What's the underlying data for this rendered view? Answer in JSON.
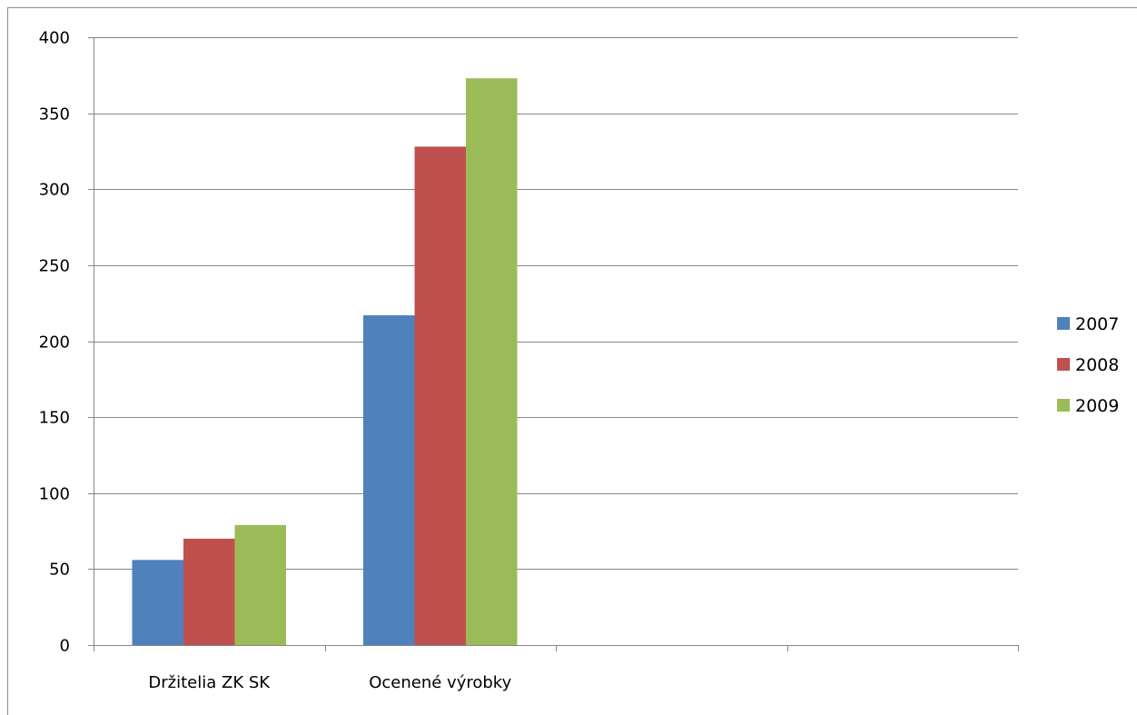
{
  "chart_data": {
    "type": "bar",
    "categories": [
      "Držitelia ZK SK",
      "Ocenené výrobky",
      "",
      ""
    ],
    "series": [
      {
        "name": "2007",
        "color": "#4f81bd",
        "values": [
          56,
          217,
          null,
          null
        ]
      },
      {
        "name": "2008",
        "color": "#c0504d",
        "values": [
          70,
          328,
          null,
          null
        ]
      },
      {
        "name": "2009",
        "color": "#9bbb59",
        "values": [
          79,
          373,
          null,
          null
        ]
      }
    ],
    "y_ticks": [
      "0",
      "50",
      "100",
      "150",
      "200",
      "250",
      "300",
      "350",
      "400"
    ],
    "ylim": [
      0,
      400
    ],
    "grid": true,
    "legend_position": "right"
  }
}
